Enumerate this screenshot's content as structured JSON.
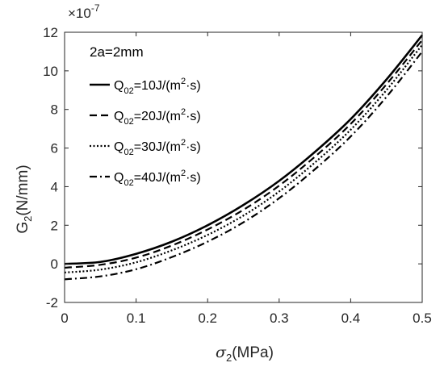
{
  "chart_data": {
    "type": "line",
    "xlabel": {
      "symbol": "σ",
      "sub": "2",
      "rest": "(MPa)"
    },
    "ylabel": {
      "pre": "G",
      "sub": "2",
      "rest": "(N/mm)"
    },
    "exponent_label": {
      "base": "×10",
      "exp": "-7"
    },
    "annotation": "2a=2mm",
    "xlim": [
      0,
      0.5
    ],
    "ylim": [
      -2,
      12
    ],
    "xticks": [
      "0",
      "0.1",
      "0.2",
      "0.3",
      "0.4",
      "0.5"
    ],
    "yticks": [
      "-2",
      "0",
      "2",
      "4",
      "6",
      "8",
      "10",
      "12"
    ],
    "series": [
      {
        "label": {
          "q": "Q",
          "sub": "02",
          "mid": "=10J/(m",
          "sup": "2",
          "end": "·s)"
        },
        "style": "solid",
        "x": [
          0,
          0.05,
          0.1,
          0.15,
          0.2,
          0.25,
          0.3,
          0.35,
          0.4,
          0.45,
          0.5
        ],
        "y": [
          0.0,
          0.1,
          0.52,
          1.15,
          2.0,
          3.05,
          4.3,
          5.8,
          7.5,
          9.55,
          11.85
        ]
      },
      {
        "label": {
          "q": "Q",
          "sub": "02",
          "mid": "=20J/(m",
          "sup": "2",
          "end": "·s)"
        },
        "style": "dashed",
        "x": [
          0,
          0.05,
          0.1,
          0.15,
          0.2,
          0.25,
          0.3,
          0.35,
          0.4,
          0.45,
          0.5
        ],
        "y": [
          -0.2,
          -0.05,
          0.32,
          0.95,
          1.78,
          2.8,
          4.05,
          5.55,
          7.25,
          9.3,
          11.6
        ]
      },
      {
        "label": {
          "q": "Q",
          "sub": "02",
          "mid": "=30J/(m",
          "sup": "2",
          "end": "·s)"
        },
        "style": "dotted",
        "x": [
          0,
          0.05,
          0.1,
          0.15,
          0.2,
          0.25,
          0.3,
          0.35,
          0.4,
          0.45,
          0.5
        ],
        "y": [
          -0.45,
          -0.3,
          0.08,
          0.7,
          1.5,
          2.5,
          3.75,
          5.25,
          6.95,
          9.0,
          11.35
        ]
      },
      {
        "label": {
          "q": "Q",
          "sub": "02",
          "mid": "=40J/(m",
          "sup": "2",
          "end": "·s)"
        },
        "style": "dashdot",
        "x": [
          0,
          0.05,
          0.1,
          0.15,
          0.2,
          0.25,
          0.3,
          0.35,
          0.4,
          0.45,
          0.5
        ],
        "y": [
          -0.8,
          -0.65,
          -0.28,
          0.35,
          1.15,
          2.15,
          3.4,
          4.9,
          6.6,
          8.65,
          11.0
        ]
      }
    ]
  }
}
